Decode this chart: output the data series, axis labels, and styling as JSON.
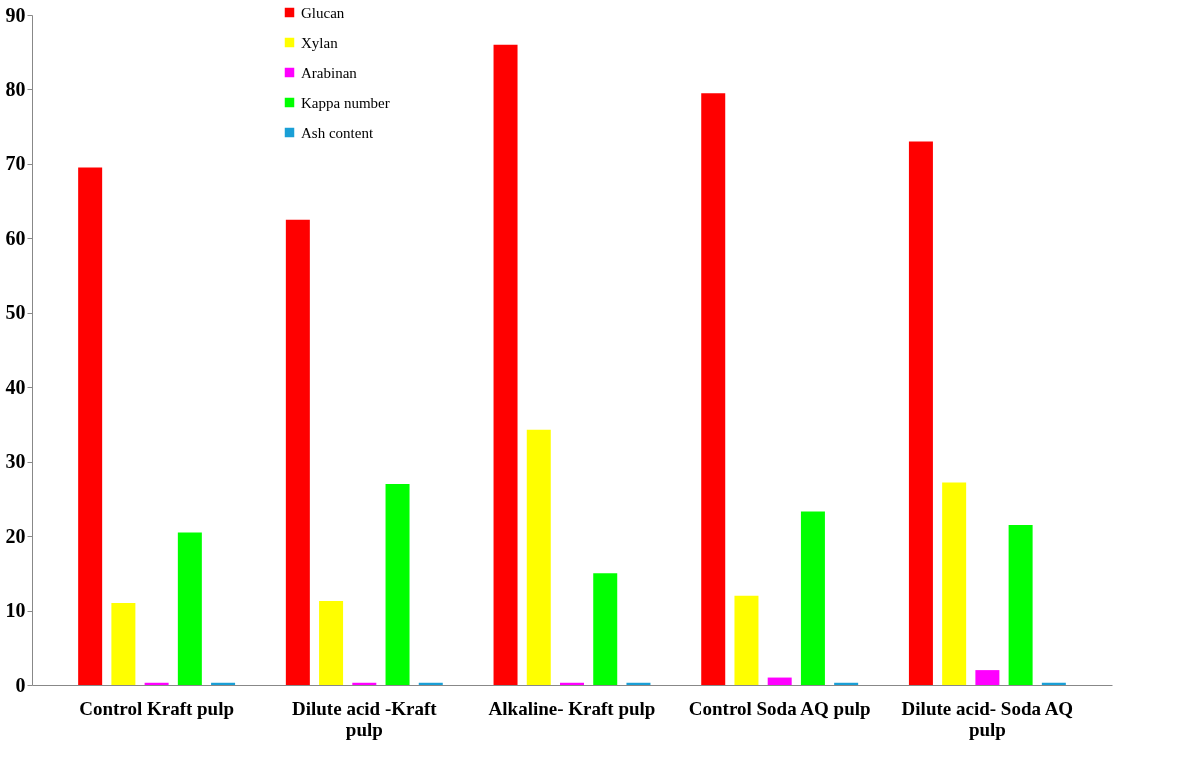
{
  "chart_data": {
    "type": "bar",
    "categories": [
      "Control Kraft pulp",
      "Dilute acid -Kraft pulp",
      "Alkaline- Kraft pulp",
      "Control Soda AQ pulp",
      "Dilute acid- Soda AQ pulp"
    ],
    "series": [
      {
        "name": "Glucan",
        "color": "#ff0000",
        "values": [
          69.5,
          62.5,
          86,
          79.5,
          73
        ]
      },
      {
        "name": "Xylan",
        "color": "#ffff00",
        "values": [
          11,
          11.3,
          34.3,
          12,
          27.2
        ]
      },
      {
        "name": "Arabinan",
        "color": "#ff00ff",
        "values": [
          0.3,
          0.3,
          0.3,
          1,
          2
        ]
      },
      {
        "name": "Kappa number",
        "color": "#00ff00",
        "values": [
          20.5,
          27,
          15,
          23.3,
          21.5
        ]
      },
      {
        "name": "Ash content",
        "color": "#1a9fd6",
        "values": [
          0.3,
          0.3,
          0.3,
          0.3,
          0.3
        ]
      }
    ],
    "ylim": [
      0,
      90
    ],
    "yticks": [
      0,
      10,
      20,
      30,
      40,
      50,
      60,
      70,
      80,
      90
    ],
    "grid": false,
    "legend": "top"
  }
}
